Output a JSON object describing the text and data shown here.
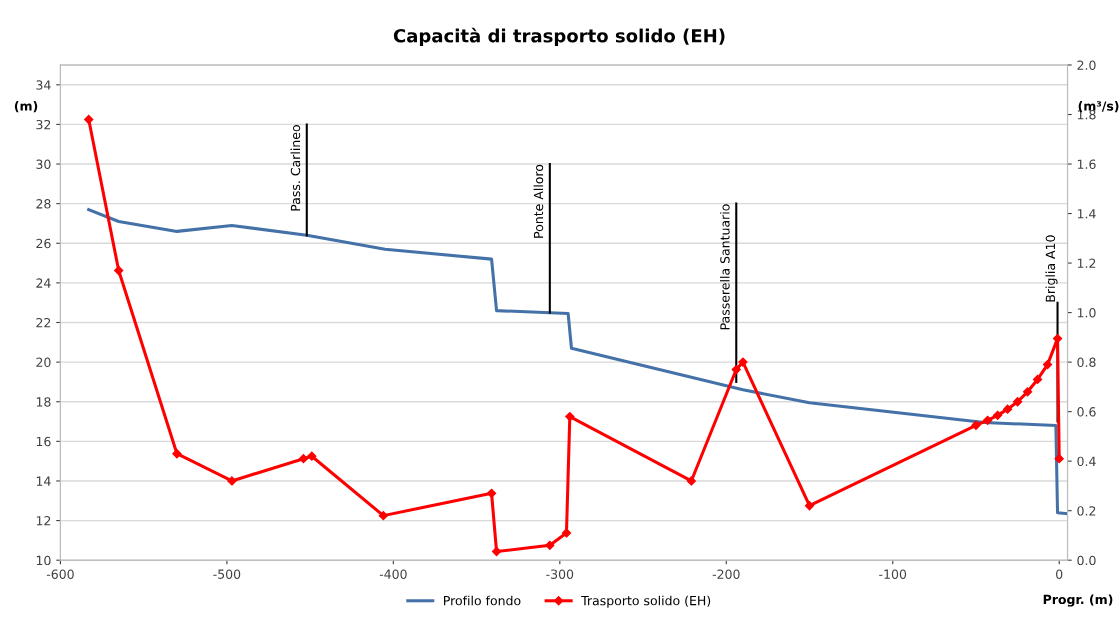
{
  "chart_data": {
    "type": "line",
    "title": "Capacità di trasporto solido (EH)",
    "xlabel": "Progr. (m)",
    "ylabel": "(m)",
    "y2label": "(m³/s)",
    "xlim": [
      -600,
      5
    ],
    "xticks": [
      -600,
      -500,
      -400,
      -300,
      -200,
      -100,
      0
    ],
    "ylim": [
      10,
      35
    ],
    "yticks": [
      10,
      12,
      14,
      16,
      18,
      20,
      22,
      24,
      26,
      28,
      30,
      32,
      34
    ],
    "y2lim": [
      0,
      2.0
    ],
    "y2ticks": [
      {
        "value": 0,
        "label": "0.0"
      },
      {
        "value": 0.2,
        "label": "0.2"
      },
      {
        "value": 0.4,
        "label": "0.4"
      },
      {
        "value": 0.6,
        "label": "0.6"
      },
      {
        "value": 0.8,
        "label": "0.8"
      },
      {
        "value": 1.0,
        "label": "1.0"
      },
      {
        "value": 1.2,
        "label": "1.2"
      },
      {
        "value": 1.4,
        "label": "1.4"
      },
      {
        "value": 1.6,
        "label": "1.6"
      },
      {
        "value": 1.8,
        "label": "1.8"
      },
      {
        "value": 2.0,
        "label": "2.0"
      }
    ],
    "grid": "y",
    "legend": "bottom",
    "series": [
      {
        "name": "Profilo fondo",
        "color": "#4472a8",
        "marker": "none",
        "x": [
          -583,
          -565,
          -530,
          -497,
          -452,
          -405,
          -341,
          -338,
          -295,
          -293,
          -190,
          -150,
          -45,
          -2,
          -1,
          5
        ],
        "values": [
          27.7,
          27.1,
          26.6,
          26.9,
          26.4,
          25.7,
          25.2,
          22.6,
          22.45,
          20.7,
          18.6,
          17.95,
          16.95,
          16.8,
          12.4,
          12.35
        ]
      },
      {
        "name": "Trasporto solido (EH)",
        "color": "#ff0000",
        "marker": "diamond",
        "axis": "y2",
        "x": [
          -583,
          -565,
          -530,
          -497,
          -454,
          -449,
          -406,
          -341,
          -338,
          -306,
          -296,
          -294,
          -221,
          -194,
          -190,
          -150,
          -50,
          -43,
          -37,
          -31,
          -25,
          -19,
          -13,
          -7,
          -1,
          0
        ],
        "values": [
          1.78,
          1.17,
          0.43,
          0.32,
          0.41,
          0.42,
          0.18,
          0.27,
          0.035,
          0.06,
          0.11,
          0.58,
          0.32,
          0.77,
          0.8,
          0.22,
          0.545,
          0.565,
          0.585,
          0.61,
          0.64,
          0.68,
          0.73,
          0.79,
          0.895,
          0.41
        ]
      },
      {
        "color": "#000000",
        "marker": "none",
        "x": [
          -452,
          -452
        ],
        "values": [
          26.4,
          32
        ]
      },
      {
        "color": "#000000",
        "marker": "none",
        "x": [
          -306,
          -306
        ],
        "values": [
          22.5,
          30
        ]
      },
      {
        "color": "#000000",
        "marker": "none",
        "x": [
          -194,
          -194
        ],
        "values": [
          19.0,
          28
        ]
      },
      {
        "color": "#000000",
        "marker": "none",
        "x": [
          -1,
          -1
        ],
        "values": [
          17.0,
          23
        ]
      }
    ],
    "annotations": [
      {
        "text": "Pass. Carlineo",
        "x": -452,
        "y": 32
      },
      {
        "text": "Ponte Alloro",
        "x": -306,
        "y": 30
      },
      {
        "text": "Passerella Santuario",
        "x": -194,
        "y": 28
      },
      {
        "text": "Briglia A10",
        "x": -1,
        "y": 23
      }
    ]
  }
}
